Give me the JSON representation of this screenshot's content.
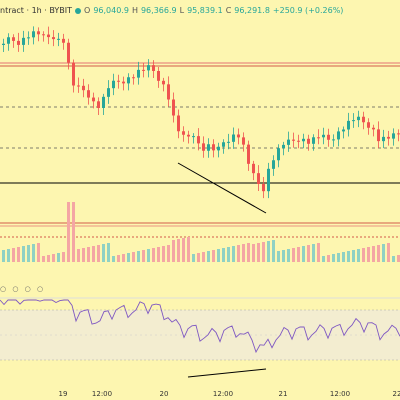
{
  "header": {
    "symbol": "ntract · 1h · BYBIT",
    "open_label": "O",
    "open": "96,040.9",
    "high_label": "H",
    "high": "96,366.9",
    "low_label": "L",
    "low": "95,839.1",
    "close_label": "C",
    "close": "96,291.8",
    "change": "+250.9 (+0.26%)"
  },
  "indicator_dots": "○ ○ ○ ○",
  "x_ticks": [
    "19",
    "12:00",
    "20",
    "12:00",
    "21",
    "12:00",
    "22"
  ],
  "colors": {
    "bullish": "#26a69a",
    "bearish": "#ef5350",
    "background": "#fdf6b0",
    "oscillator_band": "#f3edd0",
    "oscillator_line": "#7e57c2"
  },
  "icons": [
    "status-dot-icon"
  ]
}
